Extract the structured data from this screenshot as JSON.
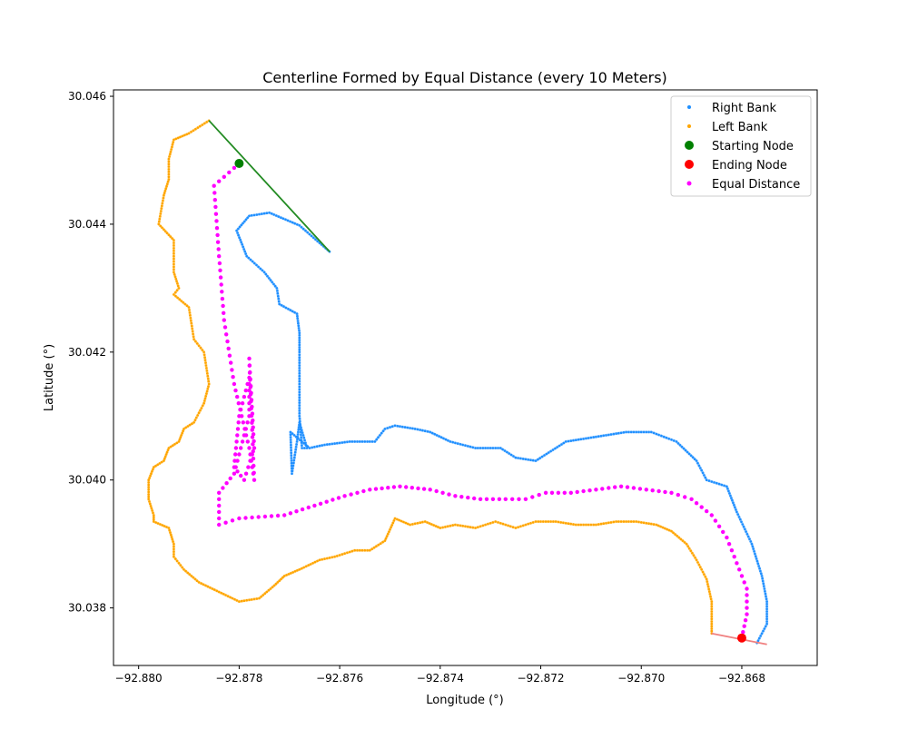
{
  "chart_data": {
    "type": "scatter",
    "title": "Centerline Formed by Equal Distance (every 10 Meters)",
    "xlabel": "Longitude (°)",
    "ylabel": "Latitude (°)",
    "xlim": [
      -92.8805,
      -92.8665
    ],
    "ylim": [
      30.0371,
      30.0461
    ],
    "xticks": [
      -92.88,
      -92.878,
      -92.876,
      -92.874,
      -92.872,
      -92.87,
      -92.868
    ],
    "xtick_labels": [
      "−92.880",
      "−92.878",
      "−92.876",
      "−92.874",
      "−92.872",
      "−92.870",
      "−92.868"
    ],
    "yticks": [
      30.038,
      30.04,
      30.042,
      30.044,
      30.046
    ],
    "ytick_labels": [
      "30.038",
      "30.040",
      "30.042",
      "30.044",
      "30.046"
    ],
    "grid": false,
    "legend_position": "top-right",
    "colors": {
      "right_bank": "#1f8fff",
      "left_bank": "#ffa500",
      "starting_node": "#008000",
      "ending_node": "#ff0000",
      "equal_distance": "#ff00ff",
      "start_line": "#228b22",
      "end_line": "#f08080"
    },
    "series": [
      {
        "name": "Right Bank",
        "kind": "bank",
        "points": [
          [
            -92.8762,
            30.04357
          ],
          [
            -92.8768,
            30.04398
          ],
          [
            -92.8774,
            30.04418
          ],
          [
            -92.8778,
            30.04413
          ],
          [
            -92.87805,
            30.0439
          ],
          [
            -92.87785,
            30.0435
          ],
          [
            -92.8775,
            30.04325
          ],
          [
            -92.87725,
            30.043
          ],
          [
            -92.8772,
            30.04275
          ],
          [
            -92.87685,
            30.0426
          ],
          [
            -92.8768,
            30.0423
          ],
          [
            -92.8768,
            30.042
          ],
          [
            -92.8768,
            30.0415
          ],
          [
            -92.8768,
            30.041
          ],
          [
            -92.87675,
            30.0405
          ],
          [
            -92.87665,
            30.0405
          ],
          [
            -92.8768,
            30.0409
          ],
          [
            -92.87685,
            30.0406
          ],
          [
            -92.87695,
            30.0401
          ],
          [
            -92.87698,
            30.04075
          ],
          [
            -92.8766,
            30.0405
          ],
          [
            -92.8763,
            30.04055
          ],
          [
            -92.8758,
            30.0406
          ],
          [
            -92.8753,
            30.0406
          ],
          [
            -92.8751,
            30.0408
          ],
          [
            -92.8749,
            30.04085
          ],
          [
            -92.8745,
            30.0408
          ],
          [
            -92.8742,
            30.04075
          ],
          [
            -92.8738,
            30.0406
          ],
          [
            -92.8733,
            30.0405
          ],
          [
            -92.8728,
            30.0405
          ],
          [
            -92.8725,
            30.04035
          ],
          [
            -92.8721,
            30.0403
          ],
          [
            -92.8718,
            30.04045
          ],
          [
            -92.8715,
            30.0406
          ],
          [
            -92.8711,
            30.04065
          ],
          [
            -92.8707,
            30.0407
          ],
          [
            -92.8703,
            30.04075
          ],
          [
            -92.8698,
            30.04075
          ],
          [
            -92.8693,
            30.0406
          ],
          [
            -92.8689,
            30.0403
          ],
          [
            -92.8687,
            30.04
          ],
          [
            -92.8683,
            30.0399
          ],
          [
            -92.8681,
            30.0395
          ],
          [
            -92.8678,
            30.039
          ],
          [
            -92.8676,
            30.0385
          ],
          [
            -92.8675,
            30.0381
          ],
          [
            -92.8675,
            30.03775
          ],
          [
            -92.8677,
            30.03745
          ]
        ]
      },
      {
        "name": "Left Bank",
        "kind": "bank",
        "points": [
          [
            -92.8786,
            30.04562
          ],
          [
            -92.879,
            30.04542
          ],
          [
            -92.8793,
            30.04532
          ],
          [
            -92.8794,
            30.04502
          ],
          [
            -92.8794,
            30.0447
          ],
          [
            -92.8795,
            30.04445
          ],
          [
            -92.8796,
            30.044
          ],
          [
            -92.8793,
            30.04375
          ],
          [
            -92.8793,
            30.04325
          ],
          [
            -92.8792,
            30.043
          ],
          [
            -92.8793,
            30.0429
          ],
          [
            -92.879,
            30.0427
          ],
          [
            -92.8789,
            30.0422
          ],
          [
            -92.8787,
            30.042
          ],
          [
            -92.8786,
            30.0415
          ],
          [
            -92.8787,
            30.0412
          ],
          [
            -92.8789,
            30.0409
          ],
          [
            -92.8791,
            30.0408
          ],
          [
            -92.8792,
            30.0406
          ],
          [
            -92.8794,
            30.0405
          ],
          [
            -92.8795,
            30.0403
          ],
          [
            -92.8797,
            30.0402
          ],
          [
            -92.8798,
            30.04
          ],
          [
            -92.8798,
            30.0397
          ],
          [
            -92.8797,
            30.03945
          ],
          [
            -92.8797,
            30.03935
          ],
          [
            -92.8794,
            30.03925
          ],
          [
            -92.8793,
            30.039
          ],
          [
            -92.8793,
            30.0388
          ],
          [
            -92.8791,
            30.0386
          ],
          [
            -92.8788,
            30.0384
          ],
          [
            -92.8784,
            30.03825
          ],
          [
            -92.878,
            30.0381
          ],
          [
            -92.8776,
            30.03815
          ],
          [
            -92.8773,
            30.03835
          ],
          [
            -92.8771,
            30.0385
          ],
          [
            -92.8768,
            30.0386
          ],
          [
            -92.8764,
            30.03875
          ],
          [
            -92.8761,
            30.0388
          ],
          [
            -92.8757,
            30.0389
          ],
          [
            -92.8754,
            30.0389
          ],
          [
            -92.8751,
            30.03905
          ],
          [
            -92.8749,
            30.0394
          ],
          [
            -92.8746,
            30.0393
          ],
          [
            -92.8743,
            30.03935
          ],
          [
            -92.874,
            30.03925
          ],
          [
            -92.8737,
            30.0393
          ],
          [
            -92.8733,
            30.03925
          ],
          [
            -92.8729,
            30.03935
          ],
          [
            -92.8725,
            30.03925
          ],
          [
            -92.8721,
            30.03935
          ],
          [
            -92.8717,
            30.03935
          ],
          [
            -92.8713,
            30.0393
          ],
          [
            -92.8709,
            30.0393
          ],
          [
            -92.8705,
            30.03935
          ],
          [
            -92.8701,
            30.03935
          ],
          [
            -92.8697,
            30.0393
          ],
          [
            -92.8694,
            30.0392
          ],
          [
            -92.8691,
            30.039
          ],
          [
            -92.8689,
            30.03875
          ],
          [
            -92.8687,
            30.03845
          ],
          [
            -92.8686,
            30.0381
          ],
          [
            -92.8686,
            30.03775
          ],
          [
            -92.8686,
            30.0376
          ]
        ]
      },
      {
        "name": "Starting Node",
        "kind": "node",
        "points": [
          [
            -92.878,
            30.04495
          ]
        ]
      },
      {
        "name": "Ending Node",
        "kind": "node",
        "points": [
          [
            -92.868,
            30.03753
          ]
        ]
      },
      {
        "name": "Equal Distance",
        "kind": "centerline",
        "points": [
          [
            -92.878,
            30.04495
          ],
          [
            -92.8785,
            30.0446
          ],
          [
            -92.8784,
            30.0435
          ],
          [
            -92.8783,
            30.0425
          ],
          [
            -92.8781,
            30.0415
          ],
          [
            -92.8778,
            30.0405
          ],
          [
            -92.8777,
            30.04
          ],
          [
            -92.8778,
            30.0419
          ],
          [
            -92.8777,
            30.0405
          ],
          [
            -92.8779,
            30.04
          ],
          [
            -92.8781,
            30.0402
          ],
          [
            -92.878,
            30.041
          ],
          [
            -92.8778,
            30.0416
          ],
          [
            -92.8778,
            30.041
          ],
          [
            -92.8781,
            30.0401
          ],
          [
            -92.8784,
            30.0398
          ],
          [
            -92.8784,
            30.0393
          ],
          [
            -92.878,
            30.0394
          ],
          [
            -92.8771,
            30.03945
          ],
          [
            -92.8765,
            30.0396
          ],
          [
            -92.8759,
            30.03975
          ],
          [
            -92.8754,
            30.03985
          ],
          [
            -92.8748,
            30.0399
          ],
          [
            -92.8742,
            30.03985
          ],
          [
            -92.8737,
            30.03975
          ],
          [
            -92.8732,
            30.0397
          ],
          [
            -92.8727,
            30.0397
          ],
          [
            -92.8723,
            30.0397
          ],
          [
            -92.8719,
            30.0398
          ],
          [
            -92.8714,
            30.0398
          ],
          [
            -92.8709,
            30.03985
          ],
          [
            -92.8704,
            30.0399
          ],
          [
            -92.8699,
            30.03985
          ],
          [
            -92.8694,
            30.0398
          ],
          [
            -92.869,
            30.0397
          ],
          [
            -92.8686,
            30.03945
          ],
          [
            -92.8683,
            30.0391
          ],
          [
            -92.8681,
            30.0387
          ],
          [
            -92.8679,
            30.0383
          ],
          [
            -92.8679,
            30.0379
          ],
          [
            -92.868,
            30.03753
          ]
        ]
      }
    ],
    "lines": [
      {
        "name": "start-transect",
        "from": [
          -92.8786,
          30.04562
        ],
        "to": [
          -92.8762,
          30.04357
        ]
      },
      {
        "name": "end-transect",
        "from": [
          -92.8686,
          30.0376
        ],
        "to": [
          -92.8675,
          30.03743
        ]
      }
    ]
  }
}
